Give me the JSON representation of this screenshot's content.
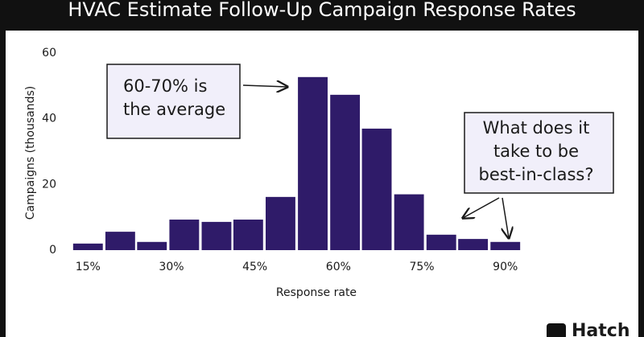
{
  "chart_data": {
    "type": "bar",
    "title": "HVAC Estimate Follow-Up Campaign Response Rates",
    "x_label": "Response rate",
    "y_label": "Campaigns (thousands)",
    "x": [
      15,
      20.8,
      26.5,
      32.3,
      38.1,
      43.8,
      49.6,
      55.4,
      61.2,
      66.9,
      72.7,
      78.5,
      84.2,
      90
    ],
    "values": [
      2,
      5.6,
      2.5,
      9.3,
      8.6,
      9.3,
      16.2,
      52.7,
      47.3,
      37,
      17,
      4.7,
      3.4,
      2.5
    ],
    "color": "#2f1b69",
    "xlim": [
      12.5,
      92.5
    ],
    "xticks": [
      {
        "value": 15,
        "label": "15%"
      },
      {
        "value": 30,
        "label": "30%"
      },
      {
        "value": 45,
        "label": "45%"
      },
      {
        "value": 60,
        "label": "60%"
      },
      {
        "value": 75,
        "label": "75%"
      },
      {
        "value": 90,
        "label": "90%"
      }
    ],
    "ylim": [
      0,
      60
    ],
    "yticks": [
      0,
      20,
      40,
      60
    ],
    "grid": false,
    "annotations": [
      {
        "lines": [
          "60-70% is",
          "the average"
        ]
      },
      {
        "lines": [
          "What does it",
          "take to be",
          "best-in-class?"
        ]
      }
    ],
    "brand": "Hatch"
  }
}
